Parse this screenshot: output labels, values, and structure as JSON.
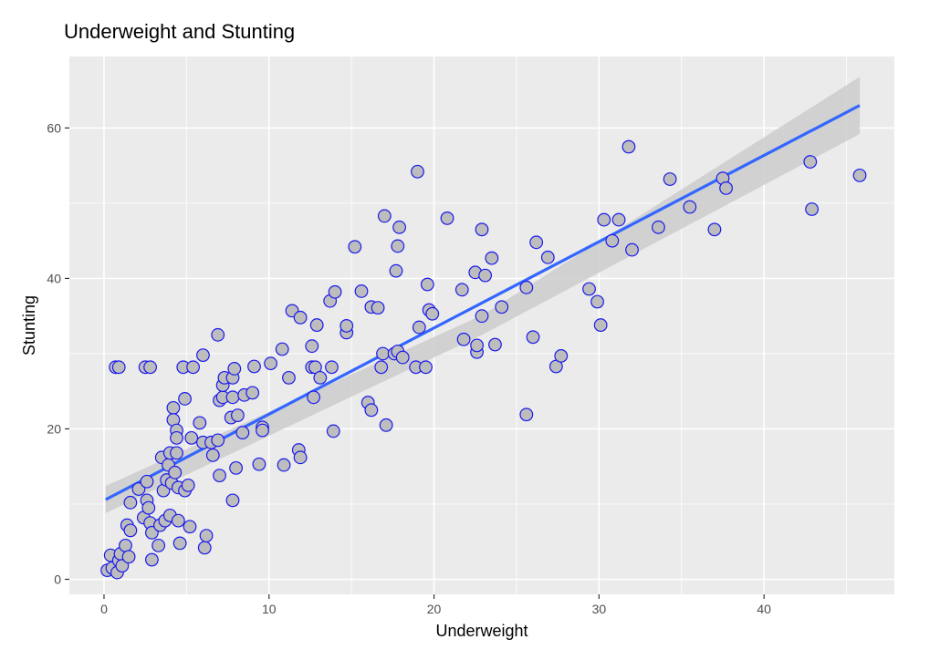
{
  "chart_data": {
    "type": "scatter",
    "title": "Underweight and Stunting",
    "xlabel": "Underweight",
    "ylabel": "Stunting",
    "xlim": [
      -2.1,
      47.9
    ],
    "ylim": [
      -2,
      69.5
    ],
    "x_ticks": [
      0,
      10,
      20,
      30,
      40
    ],
    "y_ticks": [
      0,
      20,
      40,
      60
    ],
    "grid": true,
    "colors": {
      "panel_background": "#ebebeb",
      "grid": "#ffffff",
      "point_fill": "#bdbdbd",
      "point_stroke": "#1a1aee",
      "fit_line": "#3366ff",
      "confidence_band": "#cccccc"
    },
    "fit_line": {
      "x": [
        0.1,
        45.8
      ],
      "y": [
        10.6,
        63
      ]
    },
    "confidence_band": {
      "x": [
        0.1,
        23,
        45.8
      ],
      "upper": [
        12.4,
        35.2,
        66.8
      ],
      "lower": [
        8.8,
        32.6,
        59.2
      ]
    },
    "points": [
      {
        "x": 0.2,
        "y": 1.2
      },
      {
        "x": 0.5,
        "y": 1.5
      },
      {
        "x": 0.4,
        "y": 3.2
      },
      {
        "x": 0.8,
        "y": 0.9
      },
      {
        "x": 0.9,
        "y": 2.5
      },
      {
        "x": 1.0,
        "y": 3.4
      },
      {
        "x": 1.1,
        "y": 1.8
      },
      {
        "x": 1.3,
        "y": 4.5
      },
      {
        "x": 1.5,
        "y": 3.0
      },
      {
        "x": 1.4,
        "y": 7.2
      },
      {
        "x": 1.6,
        "y": 6.5
      },
      {
        "x": 1.6,
        "y": 10.2
      },
      {
        "x": 0.7,
        "y": 28.2
      },
      {
        "x": 0.9,
        "y": 28.2
      },
      {
        "x": 2.5,
        "y": 28.2
      },
      {
        "x": 2.8,
        "y": 28.2
      },
      {
        "x": 2.1,
        "y": 12.0
      },
      {
        "x": 2.4,
        "y": 8.2
      },
      {
        "x": 2.6,
        "y": 10.5
      },
      {
        "x": 2.6,
        "y": 13.0
      },
      {
        "x": 2.7,
        "y": 9.5
      },
      {
        "x": 2.8,
        "y": 7.5
      },
      {
        "x": 2.9,
        "y": 6.2
      },
      {
        "x": 2.9,
        "y": 2.6
      },
      {
        "x": 3.3,
        "y": 4.5
      },
      {
        "x": 3.4,
        "y": 7.2
      },
      {
        "x": 3.5,
        "y": 16.2
      },
      {
        "x": 3.6,
        "y": 11.8
      },
      {
        "x": 3.7,
        "y": 7.8
      },
      {
        "x": 3.8,
        "y": 13.2
      },
      {
        "x": 3.9,
        "y": 15.2
      },
      {
        "x": 4.0,
        "y": 16.8
      },
      {
        "x": 4.0,
        "y": 8.5
      },
      {
        "x": 4.1,
        "y": 12.8
      },
      {
        "x": 4.2,
        "y": 22.8
      },
      {
        "x": 4.2,
        "y": 21.2
      },
      {
        "x": 4.3,
        "y": 14.2
      },
      {
        "x": 4.4,
        "y": 19.8
      },
      {
        "x": 4.4,
        "y": 18.8
      },
      {
        "x": 4.4,
        "y": 16.8
      },
      {
        "x": 4.5,
        "y": 12.2
      },
      {
        "x": 4.5,
        "y": 7.8
      },
      {
        "x": 4.6,
        "y": 4.8
      },
      {
        "x": 4.8,
        "y": 28.2
      },
      {
        "x": 4.9,
        "y": 24.0
      },
      {
        "x": 4.9,
        "y": 11.8
      },
      {
        "x": 5.1,
        "y": 12.5
      },
      {
        "x": 5.2,
        "y": 7.0
      },
      {
        "x": 5.3,
        "y": 18.8
      },
      {
        "x": 5.4,
        "y": 28.2
      },
      {
        "x": 5.8,
        "y": 20.8
      },
      {
        "x": 6.0,
        "y": 29.8
      },
      {
        "x": 6.0,
        "y": 18.2
      },
      {
        "x": 6.1,
        "y": 4.2
      },
      {
        "x": 6.2,
        "y": 5.8
      },
      {
        "x": 6.5,
        "y": 18.2
      },
      {
        "x": 6.6,
        "y": 16.5
      },
      {
        "x": 6.9,
        "y": 18.5
      },
      {
        "x": 6.9,
        "y": 32.5
      },
      {
        "x": 7.0,
        "y": 23.8
      },
      {
        "x": 7.0,
        "y": 13.8
      },
      {
        "x": 7.2,
        "y": 24.2
      },
      {
        "x": 7.2,
        "y": 25.8
      },
      {
        "x": 7.3,
        "y": 26.8
      },
      {
        "x": 7.7,
        "y": 21.5
      },
      {
        "x": 7.8,
        "y": 24.2
      },
      {
        "x": 7.8,
        "y": 26.8
      },
      {
        "x": 7.9,
        "y": 28.0
      },
      {
        "x": 7.8,
        "y": 10.5
      },
      {
        "x": 8.0,
        "y": 14.8
      },
      {
        "x": 8.1,
        "y": 21.8
      },
      {
        "x": 8.4,
        "y": 19.5
      },
      {
        "x": 8.5,
        "y": 24.5
      },
      {
        "x": 9.0,
        "y": 24.8
      },
      {
        "x": 9.1,
        "y": 28.3
      },
      {
        "x": 9.4,
        "y": 15.3
      },
      {
        "x": 9.6,
        "y": 20.2
      },
      {
        "x": 9.6,
        "y": 19.8
      },
      {
        "x": 10.1,
        "y": 28.7
      },
      {
        "x": 10.8,
        "y": 30.6
      },
      {
        "x": 10.9,
        "y": 15.2
      },
      {
        "x": 11.2,
        "y": 26.8
      },
      {
        "x": 11.4,
        "y": 35.7
      },
      {
        "x": 11.8,
        "y": 17.2
      },
      {
        "x": 11.9,
        "y": 16.2
      },
      {
        "x": 11.9,
        "y": 34.8
      },
      {
        "x": 12.6,
        "y": 28.2
      },
      {
        "x": 12.6,
        "y": 31.0
      },
      {
        "x": 12.7,
        "y": 24.2
      },
      {
        "x": 12.8,
        "y": 28.2
      },
      {
        "x": 12.9,
        "y": 33.8
      },
      {
        "x": 13.1,
        "y": 26.8
      },
      {
        "x": 13.7,
        "y": 37.0
      },
      {
        "x": 13.8,
        "y": 28.2
      },
      {
        "x": 13.9,
        "y": 19.7
      },
      {
        "x": 14.0,
        "y": 38.2
      },
      {
        "x": 14.7,
        "y": 32.8
      },
      {
        "x": 14.7,
        "y": 33.7
      },
      {
        "x": 15.2,
        "y": 44.2
      },
      {
        "x": 15.6,
        "y": 38.3
      },
      {
        "x": 16.0,
        "y": 23.5
      },
      {
        "x": 16.2,
        "y": 36.2
      },
      {
        "x": 16.2,
        "y": 22.5
      },
      {
        "x": 16.6,
        "y": 36.1
      },
      {
        "x": 16.8,
        "y": 28.2
      },
      {
        "x": 16.9,
        "y": 30.0
      },
      {
        "x": 17.0,
        "y": 48.3
      },
      {
        "x": 17.1,
        "y": 20.5
      },
      {
        "x": 17.6,
        "y": 30.0
      },
      {
        "x": 17.7,
        "y": 41.0
      },
      {
        "x": 17.8,
        "y": 44.3
      },
      {
        "x": 17.8,
        "y": 30.3
      },
      {
        "x": 17.9,
        "y": 46.8
      },
      {
        "x": 18.1,
        "y": 29.5
      },
      {
        "x": 18.9,
        "y": 28.2
      },
      {
        "x": 19.0,
        "y": 54.2
      },
      {
        "x": 19.1,
        "y": 33.5
      },
      {
        "x": 19.5,
        "y": 28.2
      },
      {
        "x": 19.6,
        "y": 39.2
      },
      {
        "x": 19.7,
        "y": 35.8
      },
      {
        "x": 19.9,
        "y": 35.3
      },
      {
        "x": 20.8,
        "y": 48.0
      },
      {
        "x": 21.7,
        "y": 38.5
      },
      {
        "x": 21.8,
        "y": 31.9
      },
      {
        "x": 22.5,
        "y": 40.8
      },
      {
        "x": 22.6,
        "y": 30.2
      },
      {
        "x": 22.6,
        "y": 31.1
      },
      {
        "x": 22.9,
        "y": 46.5
      },
      {
        "x": 22.9,
        "y": 35.0
      },
      {
        "x": 23.1,
        "y": 40.4
      },
      {
        "x": 23.5,
        "y": 42.7
      },
      {
        "x": 23.7,
        "y": 31.2
      },
      {
        "x": 24.1,
        "y": 36.2
      },
      {
        "x": 25.6,
        "y": 38.8
      },
      {
        "x": 25.6,
        "y": 21.9
      },
      {
        "x": 26.0,
        "y": 32.2
      },
      {
        "x": 26.2,
        "y": 44.8
      },
      {
        "x": 26.9,
        "y": 42.8
      },
      {
        "x": 27.4,
        "y": 28.3
      },
      {
        "x": 27.7,
        "y": 29.7
      },
      {
        "x": 29.4,
        "y": 38.6
      },
      {
        "x": 29.9,
        "y": 36.9
      },
      {
        "x": 30.1,
        "y": 33.8
      },
      {
        "x": 30.3,
        "y": 47.8
      },
      {
        "x": 30.8,
        "y": 45.0
      },
      {
        "x": 31.2,
        "y": 47.8
      },
      {
        "x": 31.8,
        "y": 57.5
      },
      {
        "x": 32.0,
        "y": 43.8
      },
      {
        "x": 33.6,
        "y": 46.8
      },
      {
        "x": 34.3,
        "y": 53.2
      },
      {
        "x": 35.5,
        "y": 49.5
      },
      {
        "x": 37.0,
        "y": 46.5
      },
      {
        "x": 37.5,
        "y": 53.3
      },
      {
        "x": 37.7,
        "y": 52.0
      },
      {
        "x": 42.8,
        "y": 55.5
      },
      {
        "x": 42.9,
        "y": 49.2
      },
      {
        "x": 45.8,
        "y": 53.7
      }
    ]
  }
}
